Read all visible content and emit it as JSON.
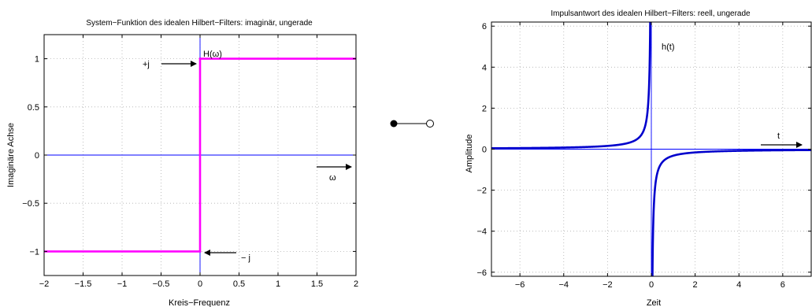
{
  "chart_data": [
    {
      "type": "line",
      "title": "System−Funktion des idealen Hilbert−Filters: imaginär, ungerade",
      "xlabel": "Kreis−Frequenz",
      "ylabel": "Imaginäre Achse",
      "xlim": [
        -2,
        2
      ],
      "ylim": [
        -1.25,
        1.25
      ],
      "xticks": [
        -2,
        -1.5,
        -1,
        -0.5,
        0,
        0.5,
        1,
        1.5,
        2
      ],
      "xtick_labels": [
        "−2",
        "−1.5",
        "−1",
        "−0.5",
        "0",
        "0.5",
        "1",
        "1.5",
        "2"
      ],
      "yticks": [
        -1,
        -0.5,
        0,
        0.5,
        1
      ],
      "ytick_labels": [
        "−1",
        "−0.5",
        "0",
        "0.5",
        "1"
      ],
      "grid": true,
      "series": [
        {
          "color": "#ff00ff",
          "points": [
            [
              -2,
              -1
            ],
            [
              0,
              -1
            ],
            [
              0,
              1
            ],
            [
              2,
              1
            ]
          ]
        }
      ],
      "axis_lines": {
        "color": "#0000ff"
      },
      "annotations": {
        "curve_label": "H(ω)",
        "plus_j": "+j",
        "minus_j": "− j",
        "axis_var": "ω"
      }
    },
    {
      "type": "line",
      "title": "Impulsantwort des idealen Hilbert−Filters: reell, ungerade",
      "xlabel": "Zeit",
      "ylabel": "Amplitude",
      "xlim": [
        -7.3,
        7.3
      ],
      "ylim": [
        -6.2,
        6.2
      ],
      "xticks": [
        -6,
        -4,
        -2,
        0,
        2,
        4,
        6
      ],
      "xtick_labels": [
        "−6",
        "−4",
        "−2",
        "0",
        "2",
        "4",
        "6"
      ],
      "yticks": [
        -6,
        -4,
        -2,
        0,
        2,
        4,
        6
      ],
      "ytick_labels": [
        "−6",
        "−4",
        "−2",
        "0",
        "2",
        "4",
        "6"
      ],
      "grid": true,
      "series": [
        {
          "color": "#0000cc",
          "function": "h(t) = -1/(pi*t)"
        }
      ],
      "axis_lines": {
        "color": "#0000ff"
      },
      "annotations": {
        "curve_label": "h(t)",
        "axis_var": "t"
      }
    }
  ],
  "connector": {
    "style": "filled-dot-to-open-circle"
  }
}
